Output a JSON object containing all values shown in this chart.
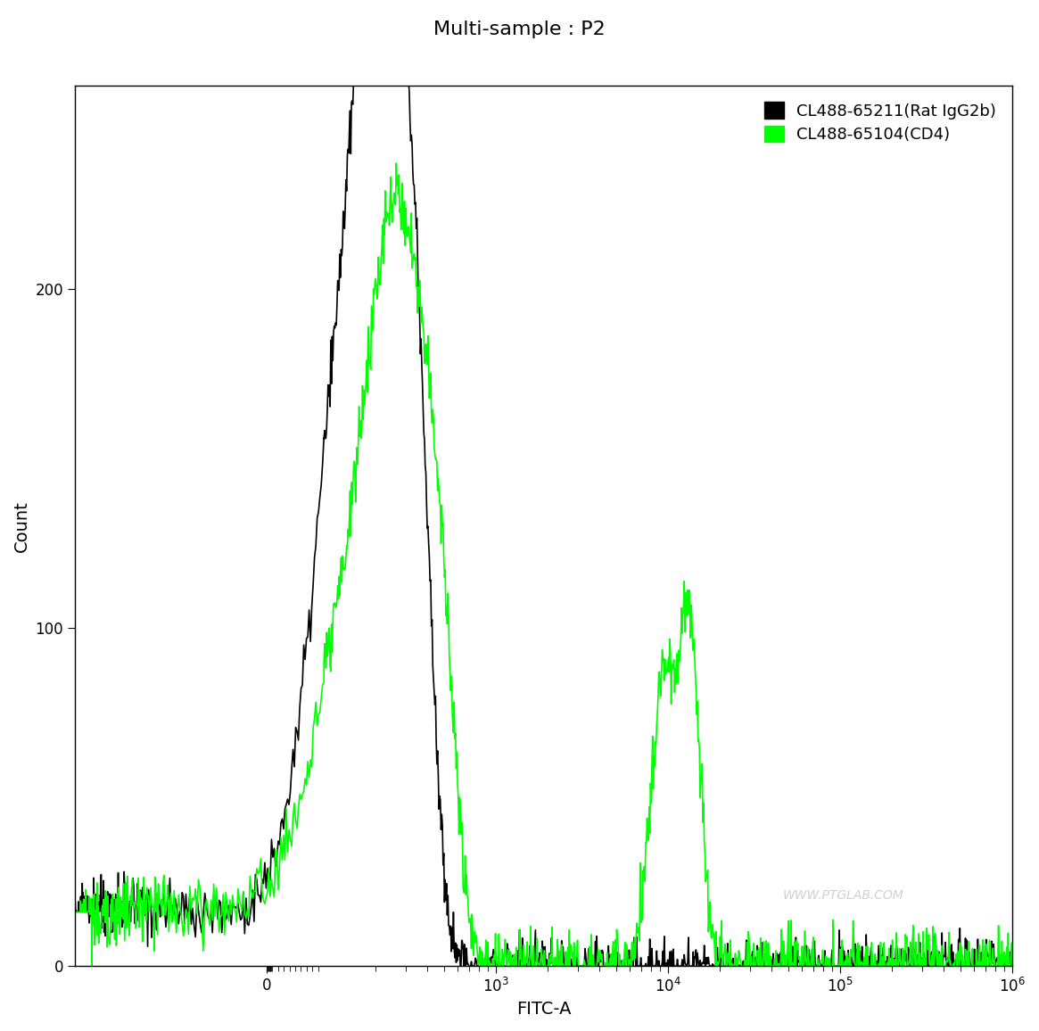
{
  "title": "Multi-sample : P2",
  "xlabel": "FITC-A",
  "ylabel": "Count",
  "legend_entries": [
    "CL488-65211(Rat IgG2b)",
    "CL488-65104(CD4)"
  ],
  "legend_colors": [
    "#000000",
    "#00ff00"
  ],
  "ylim": [
    0,
    260
  ],
  "yticks": [
    0,
    100,
    200
  ],
  "background_color": "#ffffff",
  "watermark": "WWW.PTGLAB.COM",
  "line_width": 1.2,
  "title_fontsize": 16,
  "axis_label_fontsize": 14,
  "tick_fontsize": 12,
  "legend_fontsize": 13
}
